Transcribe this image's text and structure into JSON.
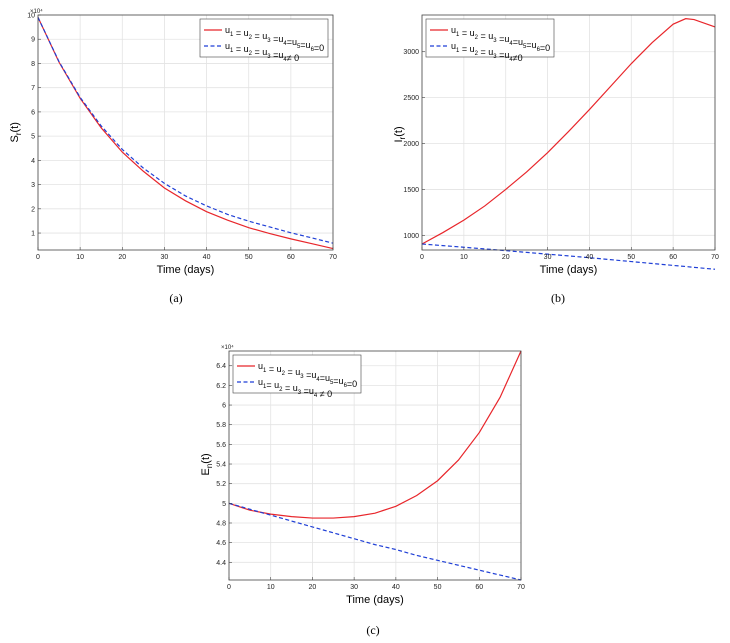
{
  "chart_data": [
    {
      "type": "line",
      "caption": "(a)",
      "xlabel": "Time (days)",
      "ylabel_main": "S",
      "ylabel_sub": "r",
      "ylabel_tail": "(t)",
      "y_multiplier": "×10⁴",
      "xlim": [
        0,
        70
      ],
      "ylim": [
        0.3,
        10
      ],
      "xticks": [
        0,
        10,
        20,
        30,
        40,
        50,
        60,
        70
      ],
      "yticks": [
        1,
        2,
        3,
        4,
        5,
        6,
        7,
        8,
        9,
        10
      ],
      "grid": true,
      "legend_position": "top-right",
      "x": [
        0,
        5,
        10,
        15,
        20,
        25,
        30,
        35,
        40,
        45,
        50,
        55,
        60,
        65,
        70
      ],
      "series": [
        {
          "name": "u1 = u2 = u3 =u4=u5=u6=0",
          "color": "#e8262b",
          "dash": "solid",
          "values": [
            9.9,
            8.05,
            6.56,
            5.34,
            4.34,
            3.55,
            2.86,
            2.33,
            1.88,
            1.53,
            1.22,
            0.98,
            0.76,
            0.56,
            0.36
          ]
        },
        {
          "name": "u1 = u2 = u3 =u4 ≠ 0",
          "color": "#1f3fd6",
          "dash": "dashed",
          "values": [
            9.9,
            8.07,
            6.6,
            5.42,
            4.45,
            3.68,
            3.05,
            2.53,
            2.12,
            1.77,
            1.49,
            1.25,
            1.01,
            0.8,
            0.58
          ]
        }
      ],
      "legend_labels": [
        {
          "parts": [
            [
              "u",
              ""
            ],
            [
              "1",
              "sub"
            ],
            [
              " = u",
              ""
            ],
            [
              "2",
              "sub"
            ],
            [
              " = u",
              ""
            ],
            [
              "3",
              "sub"
            ],
            [
              " =u",
              ""
            ],
            [
              "4",
              "sub"
            ],
            [
              "=u",
              ""
            ],
            [
              "5",
              "sub"
            ],
            [
              "=u",
              ""
            ],
            [
              "6",
              "sub"
            ],
            [
              "=0",
              ""
            ]
          ]
        },
        {
          "parts": [
            [
              "u",
              ""
            ],
            [
              "1",
              "sub"
            ],
            [
              " = u",
              ""
            ],
            [
              "2",
              "sub"
            ],
            [
              " = u",
              ""
            ],
            [
              "3",
              "sub"
            ],
            [
              " =u",
              ""
            ],
            [
              "4",
              "sub"
            ],
            [
              "≠ 0",
              ""
            ]
          ]
        }
      ]
    },
    {
      "type": "line",
      "caption": "(b)",
      "xlabel": "Time (days)",
      "ylabel_main": "I",
      "ylabel_sub": "r",
      "ylabel_tail": "(t)",
      "y_multiplier": "",
      "xlim": [
        0,
        70
      ],
      "ylim": [
        840,
        3400
      ],
      "xticks": [
        0,
        10,
        20,
        30,
        40,
        50,
        60,
        70
      ],
      "yticks": [
        1000,
        1500,
        2000,
        2500,
        3000
      ],
      "grid": true,
      "legend_position": "top-left",
      "x": [
        0,
        5,
        10,
        15,
        20,
        25,
        30,
        35,
        40,
        45,
        50,
        55,
        60,
        63,
        65,
        70
      ],
      "series": [
        {
          "name": "u1 = u2 = u3 =u4=u5=u6=0",
          "color": "#e8262b",
          "dash": "solid",
          "values": [
            905,
            1030,
            1165,
            1320,
            1500,
            1690,
            1900,
            2130,
            2370,
            2620,
            2870,
            3100,
            3300,
            3360,
            3350,
            3270
          ]
        },
        {
          "name": "u1 = u2 = u3 =u4≠0",
          "color": "#1f3fd6",
          "dash": "dashed",
          "values": [
            905,
            888,
            870,
            852,
            833,
            814,
            795,
            776,
            756,
            735,
            714,
            693,
            672,
            660,
            651,
            630
          ]
        }
      ],
      "legend_labels": [
        {
          "parts": [
            [
              "u",
              ""
            ],
            [
              "1",
              "sub"
            ],
            [
              " = u",
              ""
            ],
            [
              "2",
              "sub"
            ],
            [
              " = u",
              ""
            ],
            [
              "3",
              "sub"
            ],
            [
              " =u",
              ""
            ],
            [
              "4",
              "sub"
            ],
            [
              "=u",
              ""
            ],
            [
              "5",
              "sub"
            ],
            [
              "=u",
              ""
            ],
            [
              "6",
              "sub"
            ],
            [
              "=0",
              ""
            ]
          ]
        },
        {
          "parts": [
            [
              "u",
              ""
            ],
            [
              "1",
              "sub"
            ],
            [
              " = u",
              ""
            ],
            [
              "2",
              "sub"
            ],
            [
              " = u",
              ""
            ],
            [
              "3",
              "sub"
            ],
            [
              " =u",
              ""
            ],
            [
              "4",
              "sub"
            ],
            [
              "≠0",
              ""
            ]
          ]
        }
      ]
    },
    {
      "type": "line",
      "caption": "(c)",
      "xlabel": "Time (days)",
      "ylabel_main": "E",
      "ylabel_sub": "n",
      "ylabel_tail": "(t)",
      "y_multiplier": "×10⁴",
      "xlim": [
        0,
        70
      ],
      "ylim": [
        4.22,
        6.55
      ],
      "xticks": [
        0,
        10,
        20,
        30,
        40,
        50,
        60,
        70
      ],
      "yticks": [
        4.4,
        4.6,
        4.8,
        5,
        5.2,
        5.4,
        5.6,
        5.8,
        6,
        6.2,
        6.4
      ],
      "grid": true,
      "legend_position": "top-left",
      "x": [
        0,
        5,
        10,
        15,
        20,
        25,
        30,
        35,
        40,
        45,
        50,
        55,
        60,
        65,
        70
      ],
      "series": [
        {
          "name": "u1 = u2 = u3 =u4=u5=u6=0",
          "color": "#e8262b",
          "dash": "solid",
          "values": [
            5.0,
            4.93,
            4.89,
            4.865,
            4.85,
            4.85,
            4.865,
            4.9,
            4.97,
            5.08,
            5.23,
            5.44,
            5.72,
            6.08,
            6.55
          ]
        },
        {
          "name": "u1= u2 = u3 =u4 ≠ 0",
          "color": "#1f3fd6",
          "dash": "dashed",
          "values": [
            5.0,
            4.94,
            4.88,
            4.82,
            4.76,
            4.7,
            4.64,
            4.58,
            4.53,
            4.47,
            4.42,
            4.37,
            4.32,
            4.27,
            4.22
          ]
        }
      ],
      "legend_labels": [
        {
          "parts": [
            [
              "u",
              ""
            ],
            [
              "1",
              "sub"
            ],
            [
              " = u",
              ""
            ],
            [
              "2",
              "sub"
            ],
            [
              " = u",
              ""
            ],
            [
              "3",
              "sub"
            ],
            [
              " =u",
              ""
            ],
            [
              "4",
              "sub"
            ],
            [
              "=u",
              ""
            ],
            [
              "5",
              "sub"
            ],
            [
              "=u",
              ""
            ],
            [
              "6",
              "sub"
            ],
            [
              "=0",
              ""
            ]
          ]
        },
        {
          "parts": [
            [
              "u",
              ""
            ],
            [
              "1",
              "sub"
            ],
            [
              "= u",
              ""
            ],
            [
              "2",
              "sub"
            ],
            [
              " = u",
              ""
            ],
            [
              "3",
              "sub"
            ],
            [
              " =u",
              ""
            ],
            [
              "4",
              "sub"
            ],
            [
              " ≠ 0",
              ""
            ]
          ]
        }
      ]
    }
  ]
}
